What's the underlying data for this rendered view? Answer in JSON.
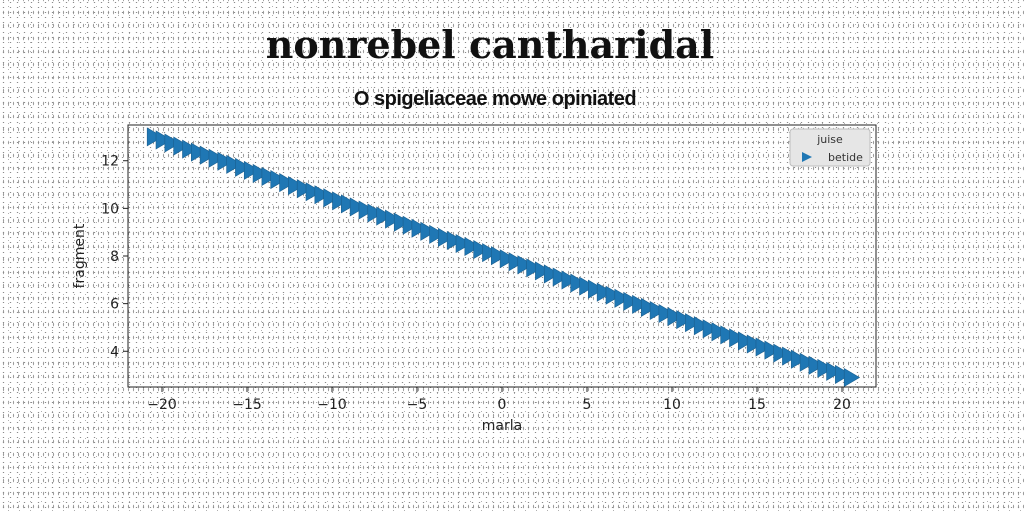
{
  "header": {
    "title": "nonrebel cantharidal",
    "subtitle": "O spigeliaceae mowe opiniated"
  },
  "chart_data": {
    "type": "scatter",
    "xlabel": "marla",
    "ylabel": "fragment",
    "xlim": [
      -22,
      22
    ],
    "ylim": [
      2.5,
      13.5
    ],
    "xticks": [
      -20,
      -15,
      -10,
      -5,
      0,
      5,
      10,
      15,
      20
    ],
    "xtick_labels": [
      "−20",
      "−15",
      "−10",
      "−5",
      "0",
      "5",
      "10",
      "15",
      "20"
    ],
    "yticks": [
      4,
      6,
      8,
      10,
      12
    ],
    "ytick_labels": [
      "4",
      "6",
      "8",
      "10",
      "12"
    ],
    "grid": false,
    "legend": {
      "title": "juise",
      "position": "top-right"
    },
    "marker": "triangle-right",
    "color": "#1f77b4",
    "series": [
      {
        "name": "betide",
        "x_start": -20.5,
        "x_end": 20.5,
        "y_start": 13.0,
        "y_end": 2.9,
        "n_points": 80
      }
    ]
  }
}
